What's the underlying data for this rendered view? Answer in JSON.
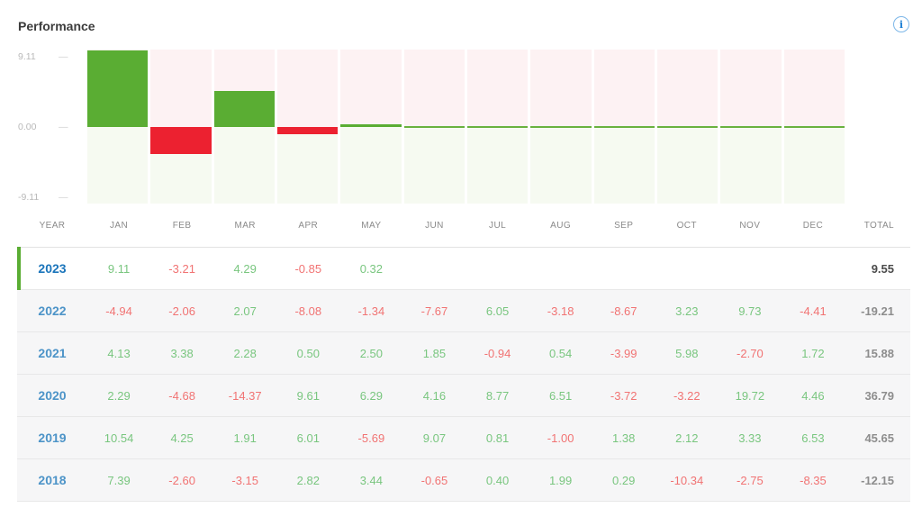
{
  "header": {
    "title": "Performance",
    "info_icon_glyph": "i"
  },
  "chart_data": {
    "type": "bar",
    "title": "Performance",
    "categories": [
      "JAN",
      "FEB",
      "MAR",
      "APR",
      "MAY",
      "JUN",
      "JUL",
      "AUG",
      "SEP",
      "OCT",
      "NOV",
      "DEC"
    ],
    "series": [
      {
        "name": "2023",
        "values": [
          9.11,
          -3.21,
          4.29,
          -0.85,
          0.32,
          null,
          null,
          null,
          null,
          null,
          null,
          null
        ]
      }
    ],
    "ylim": [
      -9.11,
      9.11
    ],
    "y_ticks": [
      "9.11",
      "0.00",
      "-9.11"
    ],
    "grid": false,
    "legend": "none",
    "colors": {
      "bar_positive": "#5aad33",
      "bar_negative": "#ec2130",
      "bg_above_zero": "#fdf2f3",
      "bg_below_zero": "#f6faf1",
      "zero_line": "#69b23e"
    }
  },
  "table": {
    "headers": [
      "YEAR",
      "JAN",
      "FEB",
      "MAR",
      "APR",
      "MAY",
      "JUN",
      "JUL",
      "AUG",
      "SEP",
      "OCT",
      "NOV",
      "DEC",
      "TOTAL"
    ],
    "rows": [
      {
        "year": "2023",
        "current": true,
        "values": [
          "9.11",
          "-3.21",
          "4.29",
          "-0.85",
          "0.32",
          "",
          "",
          "",
          "",
          "",
          "",
          ""
        ],
        "total": "9.55"
      },
      {
        "year": "2022",
        "current": false,
        "values": [
          "-4.94",
          "-2.06",
          "2.07",
          "-8.08",
          "-1.34",
          "-7.67",
          "6.05",
          "-3.18",
          "-8.67",
          "3.23",
          "9.73",
          "-4.41"
        ],
        "total": "-19.21"
      },
      {
        "year": "2021",
        "current": false,
        "values": [
          "4.13",
          "3.38",
          "2.28",
          "0.50",
          "2.50",
          "1.85",
          "-0.94",
          "0.54",
          "-3.99",
          "5.98",
          "-2.70",
          "1.72"
        ],
        "total": "15.88"
      },
      {
        "year": "2020",
        "current": false,
        "values": [
          "2.29",
          "-4.68",
          "-14.37",
          "9.61",
          "6.29",
          "4.16",
          "8.77",
          "6.51",
          "-3.72",
          "-3.22",
          "19.72",
          "4.46"
        ],
        "total": "36.79"
      },
      {
        "year": "2019",
        "current": false,
        "values": [
          "10.54",
          "4.25",
          "1.91",
          "6.01",
          "-5.69",
          "9.07",
          "0.81",
          "-1.00",
          "1.38",
          "2.12",
          "3.33",
          "6.53"
        ],
        "total": "45.65"
      },
      {
        "year": "2018",
        "current": false,
        "values": [
          "7.39",
          "-2.60",
          "-3.15",
          "2.82",
          "3.44",
          "-0.65",
          "0.40",
          "1.99",
          "0.29",
          "-10.34",
          "-2.75",
          "-8.35"
        ],
        "total": "-12.15"
      }
    ]
  }
}
